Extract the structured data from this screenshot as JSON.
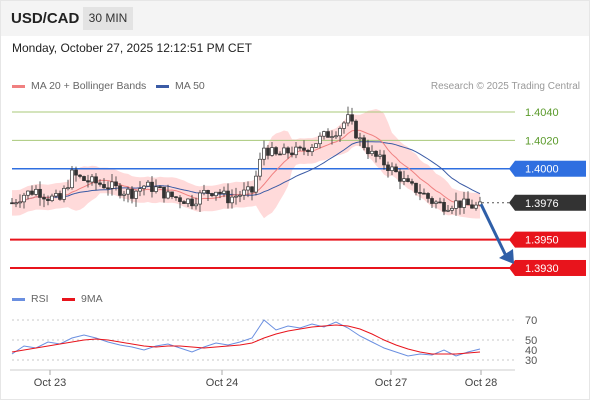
{
  "header": {
    "symbol": "USD/CAD",
    "timeframe": "30 MIN"
  },
  "datetime": "Monday, October 27, 2025 12:12:51 PM CET",
  "legend": {
    "ma20_label": "MA 20 + Bollinger Bands",
    "ma50_label": "MA 50",
    "rsi_label": "RSI",
    "ma9_label": "9MA",
    "credit": "Research © 2025 Trading Central"
  },
  "colors": {
    "band": "#ffd3d3",
    "ma20": "#f08080",
    "ma50": "#3b5ba5",
    "bull": "#3b3b3b",
    "bear": "#3b3b3b",
    "level_green": "#a8c87a",
    "level_blue": "#2f6fe0",
    "level_red": "#e8141c",
    "rsi": "#6a8fe0",
    "ma9": "#e8141c",
    "arrow": "#2f5fa8"
  },
  "chart_data": [
    {
      "type": "candlestick",
      "title": "USD/CAD",
      "x_ticks": [
        "Oct 23",
        "Oct 24",
        "Oct 27",
        "Oct 28"
      ],
      "ylim": [
        1.3918,
        1.4052
      ],
      "current_price": "1.3976",
      "levels": [
        {
          "value": 1.404,
          "label": "1.4040",
          "kind": "resistance-light"
        },
        {
          "value": 1.402,
          "label": "1.4020",
          "kind": "resistance-light"
        },
        {
          "value": 1.4,
          "label": "1.4000",
          "kind": "pivot"
        },
        {
          "value": 1.3976,
          "label": "1.3976",
          "kind": "last-price"
        },
        {
          "value": 1.395,
          "label": "1.3950",
          "kind": "target"
        },
        {
          "value": 1.393,
          "label": "1.3930",
          "kind": "target"
        }
      ],
      "forecast_arrow": {
        "from": 1.3975,
        "to": 1.393,
        "direction": "down"
      },
      "price_path": [
        [
          0,
          1.3976
        ],
        [
          6,
          1.3982
        ],
        [
          12,
          1.3985
        ],
        [
          18,
          1.398
        ],
        [
          24,
          1.3978
        ],
        [
          30,
          1.3996
        ],
        [
          36,
          1.3992
        ],
        [
          42,
          1.399
        ],
        [
          48,
          1.3988
        ],
        [
          54,
          1.3985
        ],
        [
          60,
          1.3983
        ],
        [
          66,
          1.3988
        ],
        [
          72,
          1.3986
        ],
        [
          78,
          1.3981
        ],
        [
          84,
          1.3979
        ],
        [
          90,
          1.3977
        ],
        [
          96,
          1.3983
        ],
        [
          102,
          1.3985
        ],
        [
          108,
          1.3979
        ],
        [
          114,
          1.3982
        ],
        [
          120,
          1.3984
        ],
        [
          126,
          1.4015
        ],
        [
          132,
          1.4009
        ],
        [
          138,
          1.4012
        ],
        [
          144,
          1.4012
        ],
        [
          150,
          1.4017
        ],
        [
          156,
          1.4023
        ],
        [
          162,
          1.4027
        ],
        [
          168,
          1.4035
        ],
        [
          174,
          1.402
        ],
        [
          180,
          1.401
        ],
        [
          186,
          1.4004
        ],
        [
          192,
          1.3997
        ],
        [
          198,
          1.3988
        ],
        [
          204,
          1.3984
        ],
        [
          210,
          1.3977
        ],
        [
          216,
          1.3974
        ],
        [
          222,
          1.3976
        ],
        [
          228,
          1.3974
        ],
        [
          234,
          1.3973
        ]
      ],
      "x_span": 234
    },
    {
      "type": "line",
      "title": "RSI",
      "x_ticks": [
        "Oct 23",
        "Oct 24",
        "Oct 27",
        "Oct 28"
      ],
      "ylim": [
        25,
        75
      ],
      "yticks": [
        30,
        50,
        70
      ],
      "ytick_labels": [
        "30",
        "40",
        "50",
        "70"
      ],
      "ytick_label_values": [
        30,
        40,
        50,
        70
      ],
      "series": [
        {
          "name": "RSI",
          "values": [
            36,
            44,
            42,
            48,
            46,
            52,
            55,
            52,
            48,
            45,
            43,
            40,
            44,
            46,
            42,
            38,
            43,
            47,
            45,
            48,
            52,
            70,
            60,
            64,
            62,
            66,
            63,
            68,
            62,
            54,
            48,
            42,
            38,
            34,
            36,
            35,
            40,
            34,
            38,
            41
          ]
        },
        {
          "name": "9MA",
          "values": [
            38,
            40,
            42,
            44,
            46,
            48,
            50,
            51,
            50,
            48,
            46,
            44,
            43,
            44,
            44,
            43,
            42,
            43,
            44,
            45,
            47,
            52,
            56,
            59,
            61,
            63,
            64,
            65,
            64,
            61,
            56,
            50,
            45,
            41,
            38,
            36,
            36,
            36,
            37,
            38
          ]
        }
      ]
    }
  ]
}
